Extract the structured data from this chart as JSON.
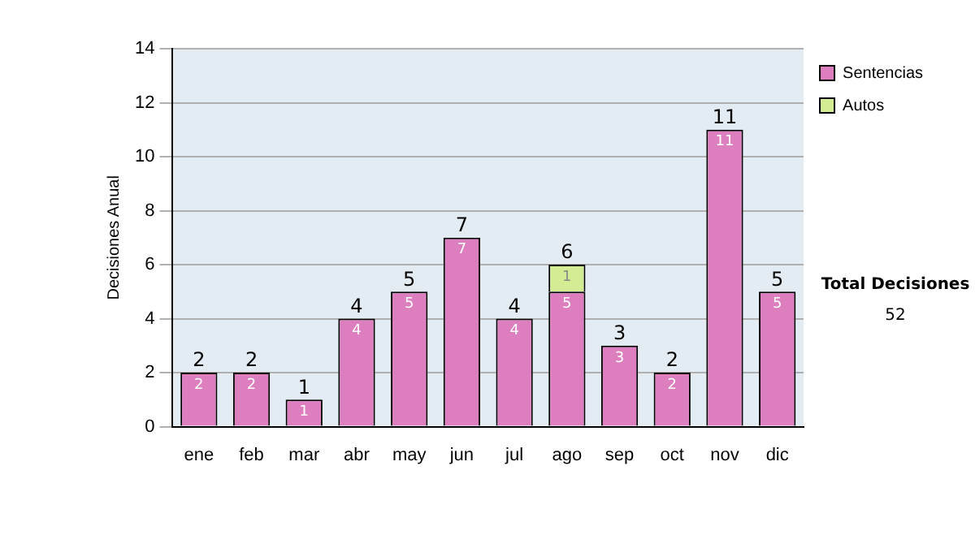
{
  "chart_data": {
    "type": "bar",
    "stacked": true,
    "ylabel": "Decisiones Anual",
    "categories": [
      "ene",
      "feb",
      "mar",
      "abr",
      "may",
      "jun",
      "jul",
      "ago",
      "sep",
      "oct",
      "nov",
      "dic"
    ],
    "series": [
      {
        "name": "Sentencias",
        "color": "#dd7fbf",
        "values": [
          2,
          2,
          1,
          4,
          5,
          7,
          4,
          5,
          3,
          2,
          11,
          5
        ]
      },
      {
        "name": "Autos",
        "color": "#d4ec94",
        "values": [
          null,
          null,
          null,
          null,
          null,
          null,
          null,
          1,
          null,
          null,
          null,
          null
        ]
      }
    ],
    "ylim": [
      0,
      14
    ],
    "yticks": [
      0,
      2,
      4,
      6,
      8,
      10,
      12,
      14
    ],
    "grid": "y",
    "legend": "right",
    "data_labels": true,
    "totals": [
      "2",
      "2",
      "1",
      "4",
      "5",
      "7",
      "4",
      "6",
      "3",
      "2",
      "11",
      "5"
    ],
    "annotations": [
      "Total Decisiones",
      "52"
    ]
  }
}
